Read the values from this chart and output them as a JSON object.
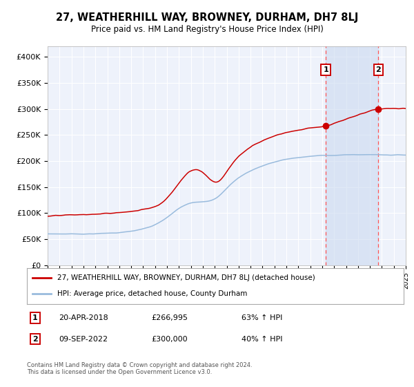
{
  "title": "27, WEATHERHILL WAY, BROWNEY, DURHAM, DH7 8LJ",
  "subtitle": "Price paid vs. HM Land Registry's House Price Index (HPI)",
  "ylim": [
    0,
    420000
  ],
  "yticks": [
    0,
    50000,
    100000,
    150000,
    200000,
    250000,
    300000,
    350000,
    400000
  ],
  "ytick_labels": [
    "£0",
    "£50K",
    "£100K",
    "£150K",
    "£200K",
    "£250K",
    "£300K",
    "£350K",
    "£400K"
  ],
  "background_color": "#ffffff",
  "plot_bg_color": "#eef2fb",
  "grid_color": "#ffffff",
  "red_line_color": "#cc0000",
  "blue_line_color": "#99bbdd",
  "vline_color": "#ff5555",
  "annotation_box_color": "#cc0000",
  "sale1_date": "20-APR-2018",
  "sale1_price": 266995,
  "sale1_label": "1",
  "sale1_hpi": "63% ↑ HPI",
  "sale2_date": "09-SEP-2022",
  "sale2_price": 300000,
  "sale2_label": "2",
  "sale2_hpi": "40% ↑ HPI",
  "legend_red": "27, WEATHERHILL WAY, BROWNEY, DURHAM, DH7 8LJ (detached house)",
  "legend_blue": "HPI: Average price, detached house, County Durham",
  "footer": "Contains HM Land Registry data © Crown copyright and database right 2024.\nThis data is licensed under the Open Government Licence v3.0.",
  "sale1_x": 2018.3,
  "sale2_x": 2022.7
}
